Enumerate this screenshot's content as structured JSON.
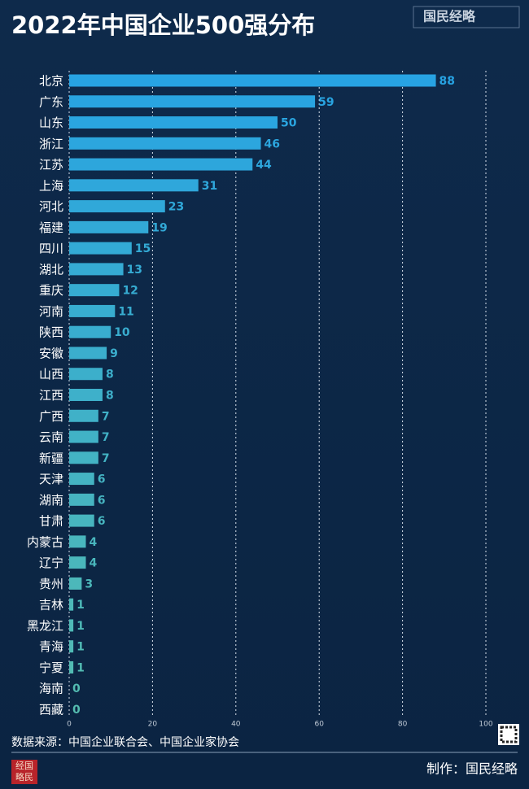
{
  "chart_data": {
    "type": "barh",
    "title": "2022年中国企业500强分布",
    "categories": [
      "北京",
      "广东",
      "山东",
      "浙江",
      "江苏",
      "上海",
      "河北",
      "福建",
      "四川",
      "湖北",
      "重庆",
      "河南",
      "陕西",
      "安徽",
      "山西",
      "江西",
      "广西",
      "云南",
      "新疆",
      "天津",
      "湖南",
      "甘肃",
      "内蒙古",
      "辽宁",
      "贵州",
      "吉林",
      "黑龙江",
      "青海",
      "宁夏",
      "海南",
      "西藏"
    ],
    "values": [
      88,
      59,
      50,
      46,
      44,
      31,
      23,
      19,
      15,
      13,
      12,
      11,
      10,
      9,
      8,
      8,
      7,
      7,
      7,
      6,
      6,
      6,
      4,
      4,
      3,
      1,
      1,
      1,
      1,
      0,
      0
    ],
    "color_gradient": [
      "#27a3e3",
      "#55bdb0"
    ],
    "xlim": [
      0,
      100
    ],
    "xticks": [
      0,
      20,
      40,
      60,
      80,
      100
    ],
    "grid": true
  },
  "logo": "国民经略",
  "source": "数据来源：中国企业联合会、中国企业家协会",
  "credit": "制作：国民经略",
  "stamp": [
    "经国",
    "略民"
  ]
}
